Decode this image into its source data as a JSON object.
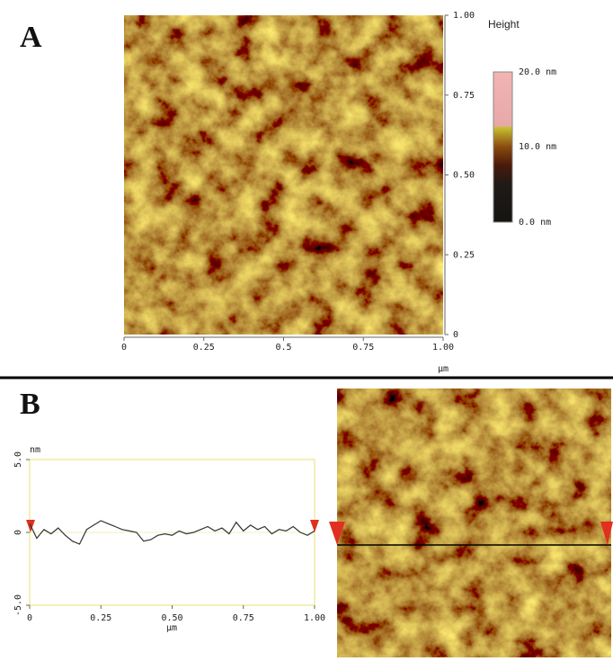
{
  "panel_a": {
    "label": "A",
    "x_ticks": [
      0,
      0.25,
      0.5,
      {
        "value": 0.75,
        "label": "0.75"
      },
      {
        "value": 1,
        "label": "1.00"
      }
    ],
    "y_ticks": [
      0,
      0.25,
      {
        "value": 0.5,
        "label": "0.50"
      },
      0.75,
      {
        "value": 1,
        "label": "1.00"
      }
    ],
    "x_unit": "µm",
    "colorbar": {
      "title": "Height",
      "labels": [
        "20.0 nm",
        "10.0 nm",
        "0.0 nm"
      ]
    }
  },
  "panel_b": {
    "label": "B",
    "y_unit": "nm",
    "y_ticks": [
      {
        "value": 5,
        "label": "5.0"
      },
      0,
      {
        "value": -5,
        "label": "-5.0"
      }
    ],
    "x_ticks": [
      0,
      0.25,
      {
        "value": 0.5,
        "label": "0.50"
      },
      0.75,
      {
        "value": 1,
        "label": "1.00"
      }
    ],
    "x_unit": "µm",
    "profile": {
      "x": [
        0,
        0.025,
        0.05,
        0.075,
        0.1,
        0.125,
        0.15,
        0.175,
        0.2,
        0.225,
        0.25,
        0.275,
        0.3,
        0.325,
        0.35,
        0.375,
        0.4,
        0.425,
        0.45,
        0.475,
        0.5,
        0.525,
        0.55,
        0.575,
        0.6,
        0.625,
        0.65,
        0.675,
        0.7,
        0.725,
        0.75,
        0.775,
        0.8,
        0.825,
        0.85,
        0.875,
        0.9,
        0.925,
        0.95,
        0.975,
        1
      ],
      "values": [
        0.6,
        -0.4,
        0.2,
        -0.1,
        0.3,
        -0.2,
        -0.6,
        -0.8,
        0.2,
        0.5,
        0.8,
        0.6,
        0.4,
        0.2,
        0.1,
        0.0,
        -0.6,
        -0.5,
        -0.2,
        -0.1,
        -0.2,
        0.1,
        -0.1,
        0.0,
        0.2,
        0.4,
        0.1,
        0.3,
        -0.1,
        0.7,
        0.1,
        0.5,
        0.2,
        0.4,
        -0.1,
        0.2,
        0.1,
        0.4,
        0.0,
        -0.2,
        0.1
      ]
    }
  }
}
